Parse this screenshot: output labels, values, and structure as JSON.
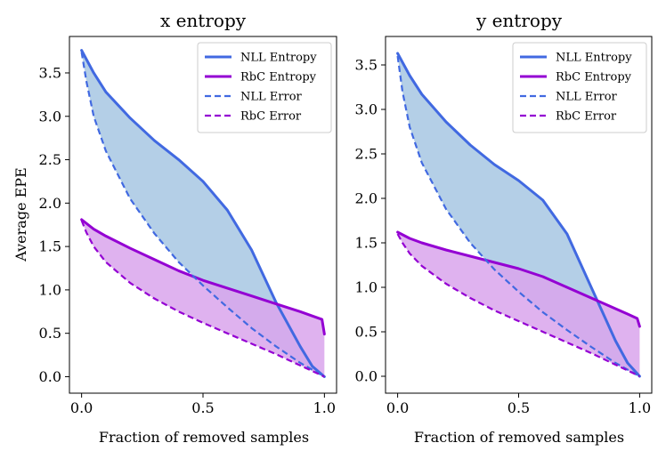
{
  "chart_data": [
    {
      "type": "line",
      "title": "x entropy",
      "xlabel": "Fraction of removed samples",
      "ylabel": "Average EPE",
      "xlim": [
        -0.05,
        1.05
      ],
      "ylim": [
        -0.19,
        3.92
      ],
      "xticks": [
        0.0,
        0.5,
        1.0
      ],
      "xtick_labels": [
        "0.0",
        "0.5",
        "1.0"
      ],
      "yticks": [
        0.0,
        0.5,
        1.0,
        1.5,
        2.0,
        2.5,
        3.0,
        3.5
      ],
      "ytick_labels": [
        "0.0",
        "0.5",
        "1.0",
        "1.5",
        "2.0",
        "2.5",
        "3.0",
        "3.5"
      ],
      "legend_position": "top-right",
      "series": [
        {
          "name": "NLL Entropy",
          "color": "#4169e1",
          "style": "solid",
          "x": [
            0.0,
            0.05,
            0.1,
            0.2,
            0.3,
            0.4,
            0.5,
            0.6,
            0.7,
            0.8,
            0.9,
            0.95,
            1.0
          ],
          "y": [
            3.76,
            3.5,
            3.28,
            2.98,
            2.72,
            2.5,
            2.25,
            1.92,
            1.46,
            0.86,
            0.35,
            0.12,
            0.0
          ]
        },
        {
          "name": "RbC Entropy",
          "color": "#9400d3",
          "style": "solid",
          "x": [
            0.0,
            0.05,
            0.1,
            0.2,
            0.3,
            0.4,
            0.5,
            0.6,
            0.7,
            0.8,
            0.9,
            0.95,
            0.99,
            1.0
          ],
          "y": [
            1.81,
            1.7,
            1.62,
            1.48,
            1.35,
            1.22,
            1.11,
            1.02,
            0.93,
            0.84,
            0.75,
            0.7,
            0.66,
            0.49
          ]
        },
        {
          "name": "NLL Error",
          "color": "#4169e1",
          "style": "dashed",
          "x": [
            0.0,
            0.02,
            0.05,
            0.1,
            0.2,
            0.3,
            0.4,
            0.5,
            0.6,
            0.7,
            0.8,
            0.9,
            1.0
          ],
          "y": [
            3.74,
            3.4,
            3.0,
            2.6,
            2.05,
            1.65,
            1.32,
            1.05,
            0.8,
            0.56,
            0.35,
            0.16,
            0.0
          ]
        },
        {
          "name": "RbC Error",
          "color": "#9400d3",
          "style": "dashed",
          "x": [
            0.0,
            0.02,
            0.05,
            0.1,
            0.2,
            0.3,
            0.4,
            0.5,
            0.6,
            0.7,
            0.8,
            0.9,
            1.0
          ],
          "y": [
            1.8,
            1.66,
            1.5,
            1.32,
            1.08,
            0.9,
            0.75,
            0.62,
            0.5,
            0.38,
            0.26,
            0.13,
            0.0
          ]
        }
      ],
      "fills": [
        {
          "between": [
            "NLL Entropy",
            "NLL Error"
          ],
          "color": "#a7c7e3"
        },
        {
          "between": [
            "RbC Entropy",
            "RbC Error"
          ],
          "color": "#d9a5ec"
        }
      ]
    },
    {
      "type": "line",
      "title": "y entropy",
      "xlabel": "Fraction of removed samples",
      "ylabel": "",
      "xlim": [
        -0.05,
        1.05
      ],
      "ylim": [
        -0.19,
        3.82
      ],
      "xticks": [
        0.0,
        0.5,
        1.0
      ],
      "xtick_labels": [
        "0.0",
        "0.5",
        "1.0"
      ],
      "yticks": [
        0.0,
        0.5,
        1.0,
        1.5,
        2.0,
        2.5,
        3.0,
        3.5
      ],
      "ytick_labels": [
        "0.0",
        "0.5",
        "1.0",
        "1.5",
        "2.0",
        "2.5",
        "3.0",
        "3.5"
      ],
      "legend_position": "top-right",
      "series": [
        {
          "name": "NLL Entropy",
          "color": "#4169e1",
          "style": "solid",
          "x": [
            0.0,
            0.05,
            0.1,
            0.2,
            0.3,
            0.4,
            0.5,
            0.6,
            0.7,
            0.8,
            0.9,
            0.95,
            1.0
          ],
          "y": [
            3.63,
            3.38,
            3.17,
            2.86,
            2.6,
            2.38,
            2.2,
            1.98,
            1.6,
            1.0,
            0.4,
            0.15,
            0.0
          ]
        },
        {
          "name": "RbC Entropy",
          "color": "#9400d3",
          "style": "solid",
          "x": [
            0.0,
            0.05,
            0.1,
            0.2,
            0.3,
            0.4,
            0.5,
            0.6,
            0.7,
            0.8,
            0.9,
            0.95,
            0.99,
            1.0
          ],
          "y": [
            1.62,
            1.55,
            1.5,
            1.42,
            1.35,
            1.28,
            1.21,
            1.12,
            1.0,
            0.88,
            0.76,
            0.7,
            0.65,
            0.56
          ]
        },
        {
          "name": "NLL Error",
          "color": "#4169e1",
          "style": "dashed",
          "x": [
            0.0,
            0.02,
            0.05,
            0.1,
            0.2,
            0.3,
            0.4,
            0.5,
            0.6,
            0.7,
            0.8,
            0.9,
            1.0
          ],
          "y": [
            3.6,
            3.2,
            2.8,
            2.4,
            1.88,
            1.5,
            1.2,
            0.95,
            0.72,
            0.52,
            0.33,
            0.15,
            0.0
          ]
        },
        {
          "name": "RbC Error",
          "color": "#9400d3",
          "style": "dashed",
          "x": [
            0.0,
            0.02,
            0.05,
            0.1,
            0.2,
            0.3,
            0.4,
            0.5,
            0.6,
            0.7,
            0.8,
            0.9,
            1.0
          ],
          "y": [
            1.6,
            1.5,
            1.38,
            1.24,
            1.04,
            0.88,
            0.74,
            0.62,
            0.5,
            0.38,
            0.26,
            0.13,
            0.0
          ]
        }
      ],
      "fills": [
        {
          "between": [
            "NLL Entropy",
            "NLL Error"
          ],
          "color": "#a7c7e3"
        },
        {
          "between": [
            "RbC Entropy",
            "RbC Error"
          ],
          "color": "#d9a5ec"
        }
      ]
    }
  ]
}
